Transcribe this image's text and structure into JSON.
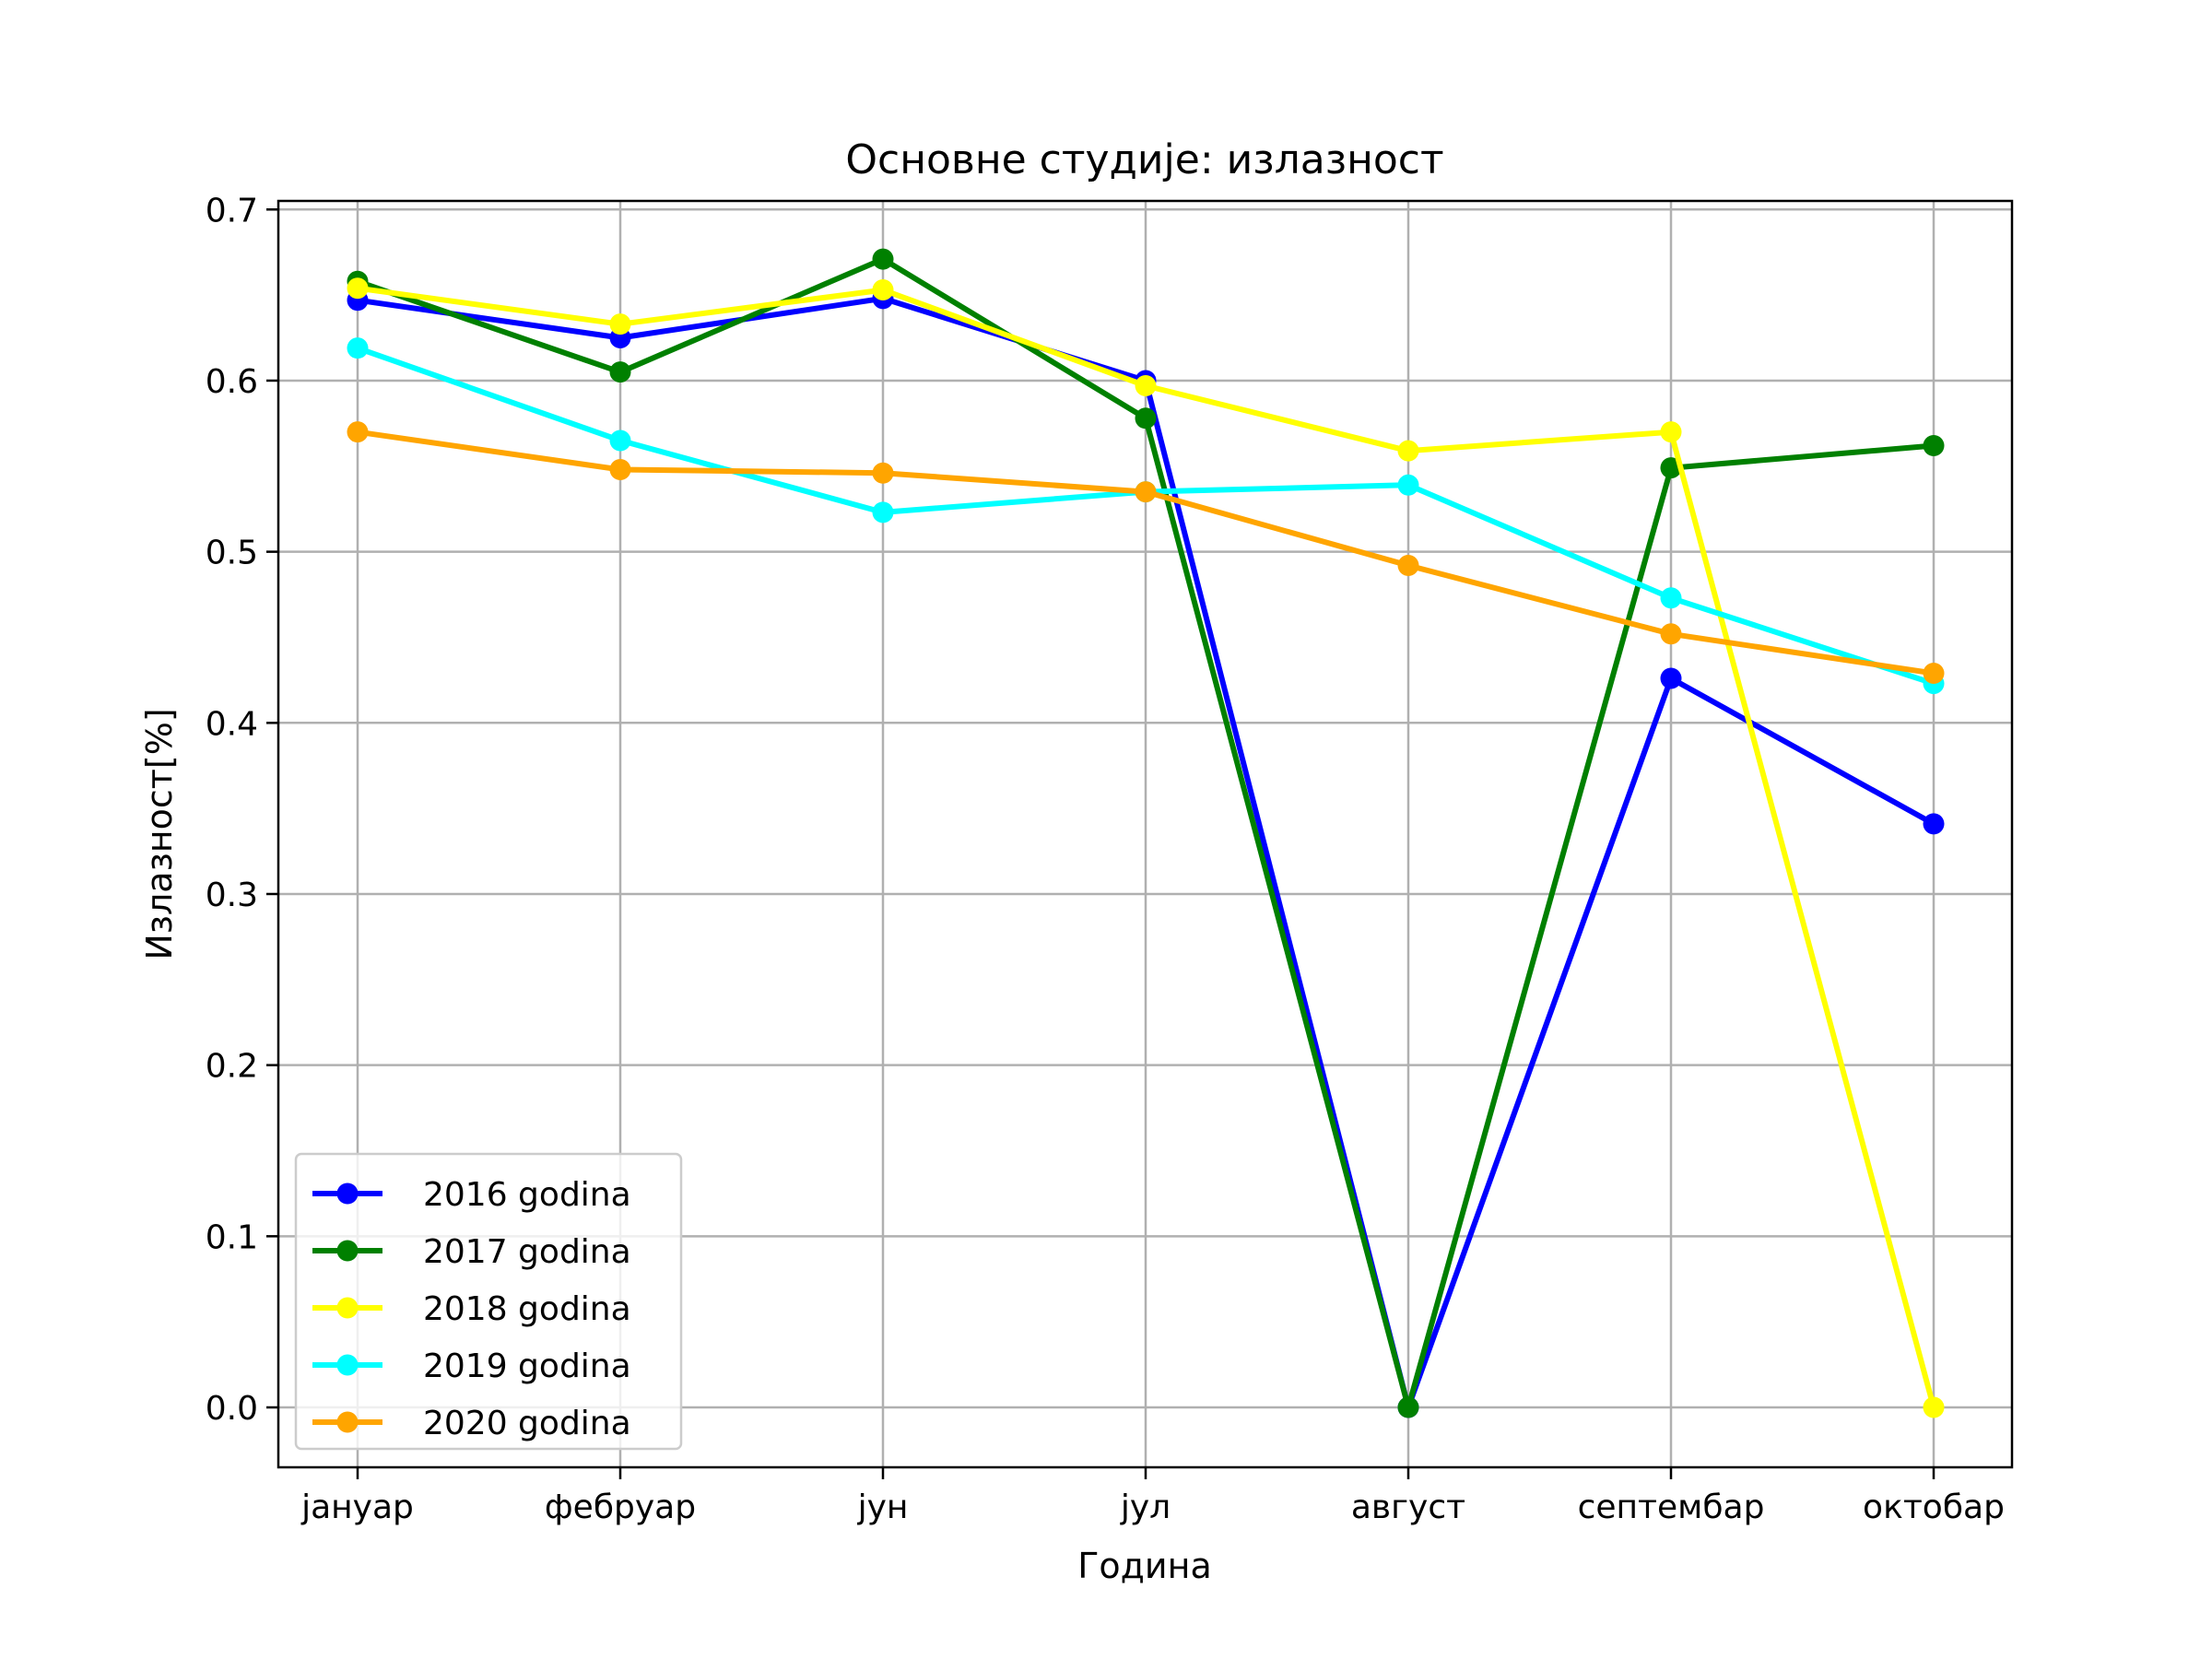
{
  "chart_data": {
    "type": "line",
    "title": "Основне студије: излазност",
    "xlabel": "Година",
    "ylabel": "Излазност[%]",
    "categories": [
      "јануар",
      "фебруар",
      "јун",
      "јул",
      "август",
      "септембар",
      "октобар"
    ],
    "ylim": [
      -0.035,
      0.705
    ],
    "yticks": [
      0.0,
      0.1,
      0.2,
      0.3,
      0.4,
      0.5,
      0.6,
      0.7
    ],
    "ytick_labels": [
      "0.0",
      "0.1",
      "0.2",
      "0.3",
      "0.4",
      "0.5",
      "0.6",
      "0.7"
    ],
    "grid": true,
    "legend_position": "lower-left",
    "series": [
      {
        "name": "2016 godina",
        "color": "#0000ff",
        "values": [
          0.647,
          0.625,
          0.648,
          0.6,
          0.0,
          0.426,
          0.341
        ]
      },
      {
        "name": "2017 godina",
        "color": "#008000",
        "values": [
          0.658,
          0.605,
          0.671,
          0.578,
          0.0,
          0.549,
          0.562
        ]
      },
      {
        "name": "2018 godina",
        "color": "#ffff00",
        "values": [
          0.654,
          0.633,
          0.653,
          0.597,
          0.559,
          0.57,
          0.0
        ]
      },
      {
        "name": "2019 godina",
        "color": "#00ffff",
        "values": [
          0.619,
          0.565,
          0.523,
          0.535,
          0.539,
          0.473,
          0.423
        ]
      },
      {
        "name": "2020 godina",
        "color": "#ffa500",
        "values": [
          0.57,
          0.548,
          0.546,
          0.535,
          0.492,
          0.452,
          0.429
        ]
      }
    ]
  }
}
